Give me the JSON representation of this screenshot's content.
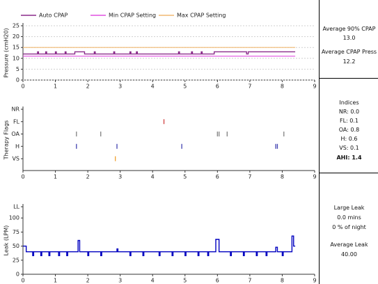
{
  "chart_data": [
    {
      "type": "line",
      "y_label": "Pressure (cmH20)",
      "xlim": [
        0,
        9
      ],
      "xticks": [
        0,
        1,
        2,
        3,
        4,
        5,
        6,
        7,
        8,
        9
      ],
      "ylim": [
        0,
        25
      ],
      "yticks": [
        0,
        5,
        10,
        15,
        20,
        25
      ],
      "grid": true,
      "legend": "top",
      "series": [
        {
          "name": "Auto CPAP",
          "color": "#8a2a8a",
          "x": [
            0,
            0.45,
            0.45,
            0.48,
            0.48,
            0.7,
            0.7,
            0.73,
            0.73,
            1.0,
            1.0,
            1.03,
            1.03,
            1.3,
            1.3,
            1.33,
            1.33,
            1.6,
            1.6,
            1.9,
            1.9,
            2.2,
            2.2,
            2.23,
            2.23,
            2.8,
            2.8,
            2.83,
            2.83,
            3.3,
            3.3,
            3.33,
            3.33,
            3.5,
            3.5,
            3.53,
            3.53,
            4.8,
            4.8,
            4.83,
            4.83,
            5.2,
            5.2,
            5.23,
            5.23,
            5.5,
            5.5,
            5.53,
            5.53,
            5.9,
            5.9,
            6.9,
            6.9,
            6.95,
            6.95,
            8.4
          ],
          "values": [
            12,
            12,
            13,
            13,
            12,
            12,
            13,
            13,
            12,
            12,
            13,
            13,
            12,
            12,
            13,
            13,
            12,
            12,
            13,
            13,
            12,
            12,
            13,
            13,
            12,
            12,
            13,
            13,
            12,
            12,
            13,
            13,
            12,
            12,
            13,
            13,
            12,
            12,
            13,
            13,
            12,
            12,
            13,
            13,
            12,
            12,
            13,
            13,
            12,
            12,
            13,
            13,
            12,
            12,
            13,
            13
          ]
        },
        {
          "name": "Min CPAP Setting",
          "color": "#e050e0",
          "x": [
            0,
            8.4
          ],
          "values": [
            11,
            11
          ]
        },
        {
          "name": "Max CPAP Setting",
          "color": "#f0b870",
          "x": [
            0,
            8.4
          ],
          "values": [
            15,
            15
          ]
        }
      ]
    },
    {
      "type": "scatter",
      "y_label": "Therapy Flags",
      "xlim": [
        0,
        9
      ],
      "xticks": [
        0,
        1,
        2,
        3,
        4,
        5,
        6,
        7,
        8,
        9
      ],
      "grid": false,
      "categories": [
        "NR",
        "FL",
        "OA",
        "H",
        "VS"
      ],
      "series": [
        {
          "color": "#888888",
          "x": []
        },
        {
          "color": "#d04040",
          "x": [
            4.35
          ]
        },
        {
          "color": "#808080",
          "x": [
            1.65,
            2.4,
            6.0,
            6.05,
            6.3,
            8.05
          ]
        },
        {
          "color": "#4040b0",
          "x": [
            1.65,
            2.9,
            4.9,
            7.8,
            7.85
          ]
        },
        {
          "color": "#f0a030",
          "x": [
            2.85
          ]
        }
      ]
    },
    {
      "type": "line",
      "y_label": "Leak (LPM)",
      "xlim": [
        0,
        9
      ],
      "xticks": [
        0,
        1,
        2,
        3,
        4,
        5,
        6,
        7,
        8,
        9
      ],
      "ylim": [
        0,
        120
      ],
      "yticks": [
        0,
        25,
        50,
        75,
        100,
        {
          "value": 120,
          "label": "LL"
        }
      ],
      "grid": false,
      "series": [
        {
          "color": "#0000c0",
          "x": [
            0,
            0.1,
            0.1,
            0.3,
            0.3,
            0.33,
            0.33,
            0.55,
            0.55,
            0.58,
            0.58,
            0.8,
            0.8,
            0.83,
            0.83,
            1.1,
            1.1,
            1.13,
            1.13,
            1.35,
            1.35,
            1.38,
            1.38,
            1.7,
            1.7,
            1.75,
            1.75,
            2.0,
            2.0,
            2.03,
            2.03,
            2.4,
            2.4,
            2.43,
            2.43,
            2.9,
            2.9,
            2.93,
            2.93,
            3.3,
            3.3,
            3.33,
            3.33,
            3.7,
            3.7,
            3.73,
            3.73,
            4.2,
            4.2,
            4.23,
            4.23,
            4.6,
            4.6,
            4.63,
            4.63,
            5.0,
            5.0,
            5.03,
            5.03,
            5.4,
            5.4,
            5.43,
            5.43,
            5.7,
            5.7,
            5.73,
            5.73,
            5.95,
            5.95,
            6.05,
            6.05,
            6.4,
            6.4,
            6.43,
            6.43,
            6.8,
            6.8,
            6.83,
            6.83,
            7.2,
            7.2,
            7.23,
            7.23,
            7.5,
            7.5,
            7.53,
            7.53,
            7.8,
            7.8,
            7.85,
            7.85,
            8.0,
            8.0,
            8.03,
            8.03,
            8.3,
            8.3,
            8.35,
            8.35,
            8.4
          ],
          "values": [
            50,
            50,
            40,
            40,
            33,
            33,
            40,
            40,
            33,
            33,
            40,
            40,
            33,
            33,
            40,
            40,
            33,
            33,
            40,
            40,
            33,
            33,
            40,
            40,
            60,
            60,
            40,
            40,
            33,
            33,
            40,
            40,
            33,
            33,
            40,
            40,
            45,
            45,
            40,
            40,
            33,
            33,
            40,
            40,
            33,
            33,
            40,
            40,
            33,
            33,
            40,
            40,
            33,
            33,
            40,
            40,
            33,
            33,
            40,
            40,
            33,
            33,
            40,
            40,
            33,
            33,
            40,
            40,
            62,
            62,
            40,
            40,
            33,
            33,
            40,
            40,
            33,
            33,
            40,
            40,
            33,
            33,
            40,
            40,
            33,
            33,
            40,
            40,
            48,
            48,
            40,
            40,
            33,
            33,
            40,
            40,
            68,
            68,
            50,
            50
          ]
        }
      ]
    }
  ],
  "side_panel": {
    "pressure": {
      "avg90_label": "Average 90% CPAP",
      "avg90_value": "13.0",
      "avg_label": "Average CPAP Press",
      "avg_value": "12.2"
    },
    "indices": {
      "title": "Indices",
      "items": [
        "NR: 0.0",
        "FL: 0.1",
        "OA: 0.8",
        "H: 0.6",
        "VS: 0.1"
      ],
      "ahi": "AHI: 1.4"
    },
    "leak": {
      "large_label": "Large Leak",
      "large_mins": "0.0 mins",
      "large_pct": "0 % of night",
      "avg_label": "Average Leak",
      "avg_value": "40.00"
    }
  }
}
